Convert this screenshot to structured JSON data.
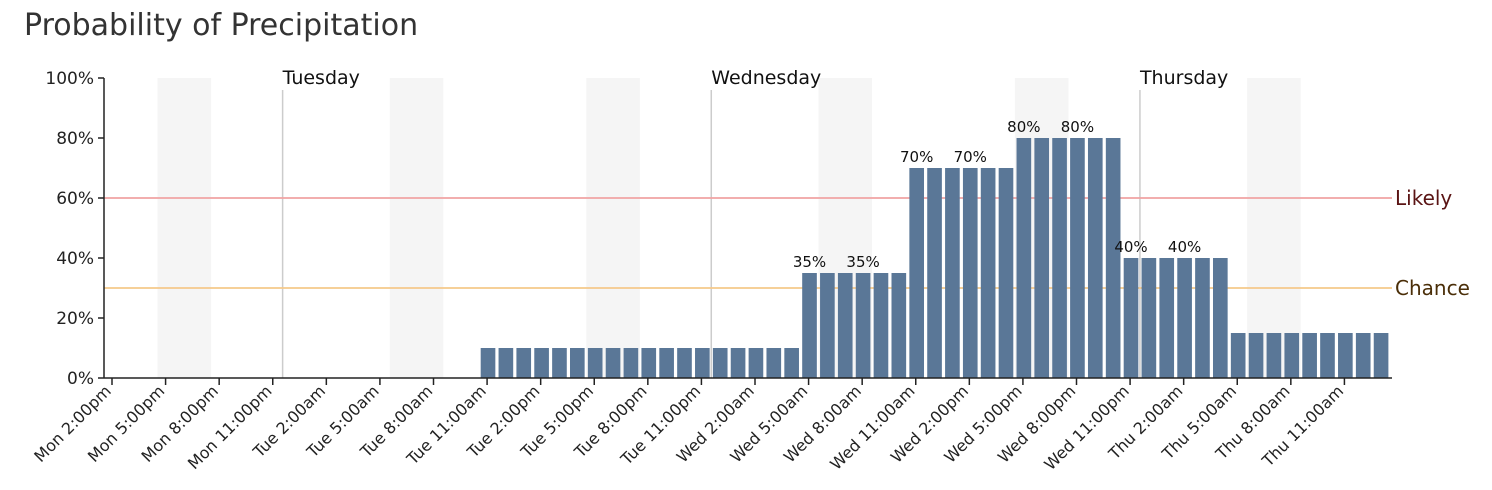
{
  "chart_data": {
    "type": "bar",
    "title": "Probability of Precipitation",
    "ylim": [
      0,
      100
    ],
    "y_ticks": [
      0,
      20,
      40,
      60,
      80,
      100
    ],
    "y_unit": "%",
    "start_hour": 14,
    "hour_step": 1,
    "values": [
      0,
      0,
      0,
      0,
      0,
      0,
      0,
      0,
      0,
      0,
      0,
      0,
      0,
      0,
      0,
      0,
      0,
      0,
      0,
      0,
      0,
      10,
      10,
      10,
      10,
      10,
      10,
      10,
      10,
      10,
      10,
      10,
      10,
      10,
      10,
      10,
      10,
      10,
      10,
      35,
      35,
      35,
      35,
      35,
      35,
      70,
      70,
      70,
      70,
      70,
      70,
      80,
      80,
      80,
      80,
      80,
      80,
      40,
      40,
      40,
      40,
      40,
      40,
      15,
      15,
      15,
      15,
      15,
      15,
      15,
      15,
      15
    ],
    "x_tick_labels": [
      "Mon 2:00pm",
      "Mon 5:00pm",
      "Mon 8:00pm",
      "Mon 11:00pm",
      "Tue 2:00am",
      "Tue 5:00am",
      "Tue 8:00am",
      "Tue 11:00am",
      "Tue 2:00pm",
      "Tue 5:00pm",
      "Tue 8:00pm",
      "Tue 11:00pm",
      "Wed 2:00am",
      "Wed 5:00am",
      "Wed 8:00am",
      "Wed 11:00am",
      "Wed 2:00pm",
      "Wed 5:00pm",
      "Wed 8:00pm",
      "Wed 11:00pm",
      "Thu 2:00am",
      "Thu 5:00am",
      "Thu 8:00am",
      "Thu 11:00am"
    ],
    "day_boundaries": [
      {
        "label": "Tuesday",
        "hour_index": 10
      },
      {
        "label": "Wednesday",
        "hour_index": 34
      },
      {
        "label": "Thursday",
        "hour_index": 58
      }
    ],
    "night_bands": [
      [
        3,
        6
      ],
      [
        16,
        19
      ],
      [
        27,
        30
      ],
      [
        40,
        43
      ],
      [
        51,
        54
      ],
      [
        64,
        67
      ]
    ],
    "bar_labels": [
      {
        "index": 39,
        "text": "35%"
      },
      {
        "index": 42,
        "text": "35%"
      },
      {
        "index": 45,
        "text": "70%"
      },
      {
        "index": 48,
        "text": "70%"
      },
      {
        "index": 51,
        "text": "80%"
      },
      {
        "index": 54,
        "text": "80%"
      },
      {
        "index": 57,
        "text": "40%"
      },
      {
        "index": 60,
        "text": "40%"
      }
    ],
    "thresholds": [
      {
        "label": "Likely",
        "value": 60,
        "line_color": "#f0a3a3",
        "text_color": "#5a1414"
      },
      {
        "label": "Chance",
        "value": 30,
        "line_color": "#f5c98a",
        "text_color": "#4a2e08"
      }
    ],
    "bar_color": "#5a7797",
    "band_color": "#f5f5f5",
    "grid": false
  }
}
